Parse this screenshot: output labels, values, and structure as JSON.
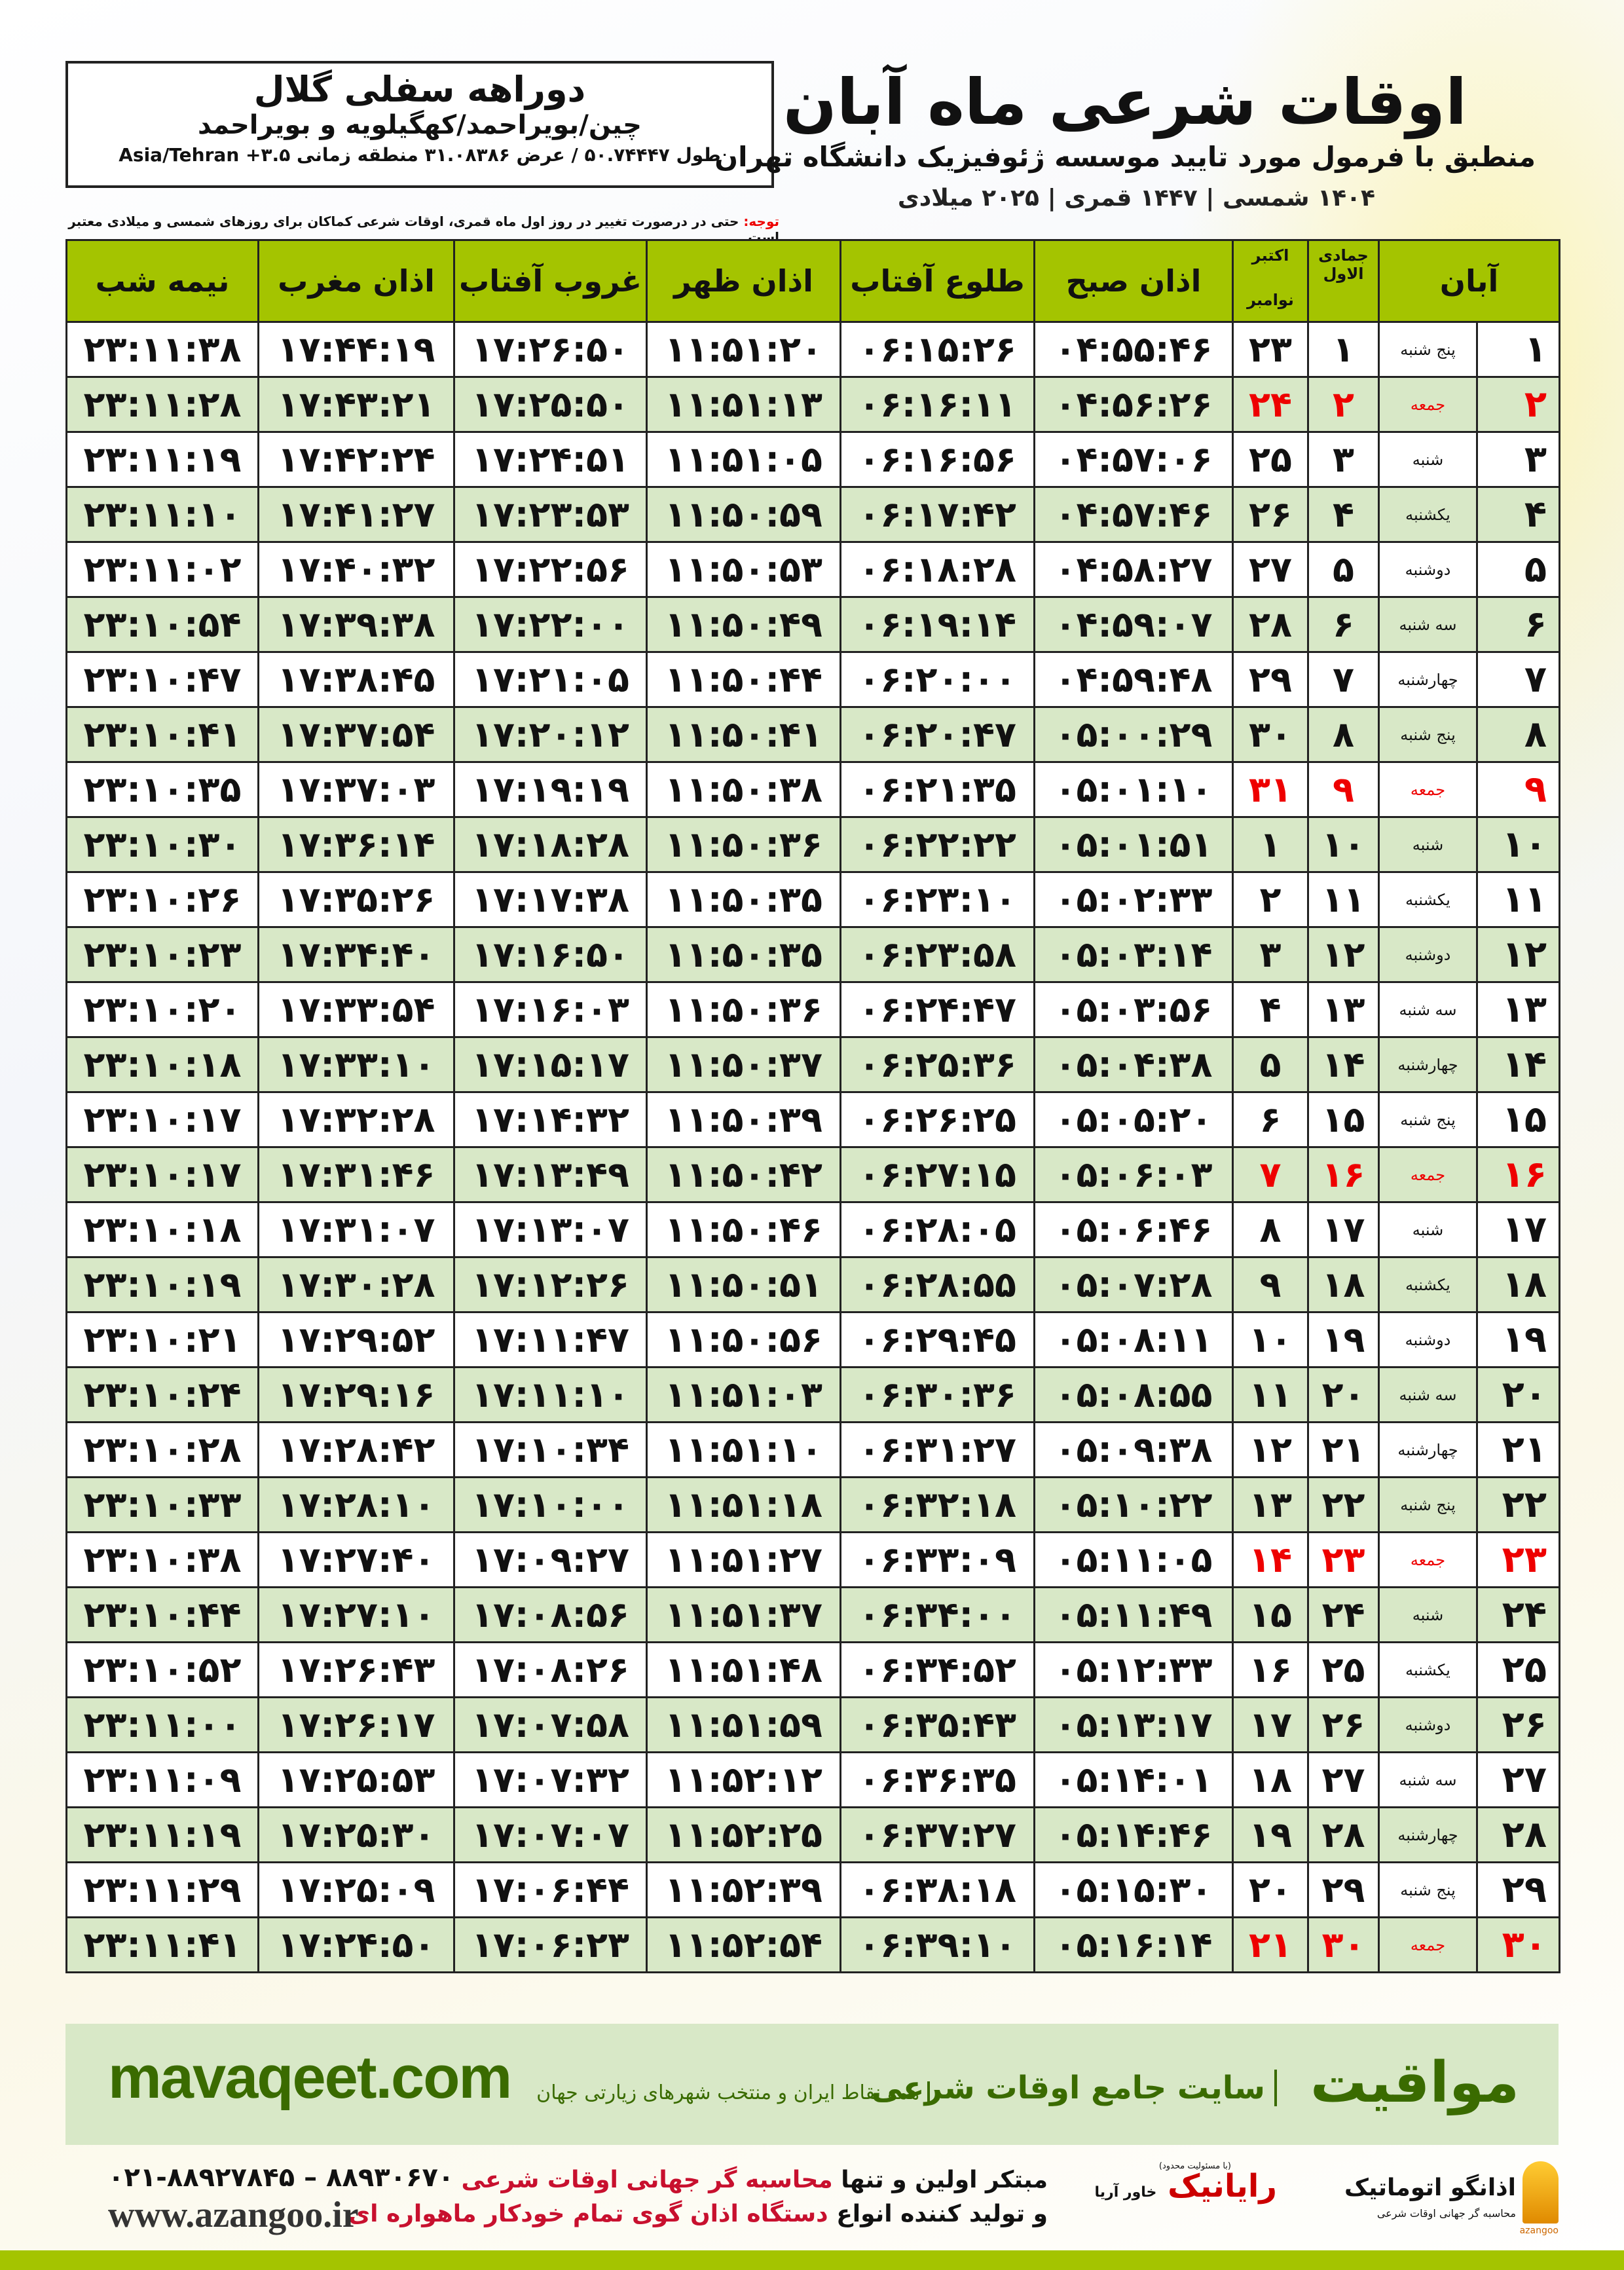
{
  "header": {
    "title": "اوقات شرعی ماه آبان",
    "subtitle": "منطبق با فرمول مورد تایید موسسه ژئوفیزیک دانشگاه تهران",
    "dates": "۱۴۰۴ شمسی | ۱۴۴۷ قمری | ۲۰۲۵ میلادی"
  },
  "location": {
    "name": "دوراهه سفلی گلال",
    "region": "چین/بویراحمد/کهگیلویه و بویراحمد",
    "coords": "طول ۵۰.۷۴۴۴۷ / عرض ۳۱.۰۸۳۸۶ منطقه زمانی ۳.۵+ Asia/Tehran"
  },
  "note": {
    "label": "توجه:",
    "text": " حتی در درصورت تغییر در روز اول ماه قمری، اوقات شرعی کماکان برای روزهای شمسی و میلادی معتبر است."
  },
  "table": {
    "headers": {
      "day": "آبان",
      "qamari": "جمادی الاول",
      "miladi_top": "اکتبر",
      "miladi_bottom": "نوامبر",
      "fajr": "اذان صبح",
      "sunrise": "طلوع آفتاب",
      "dhuhr": "اذان ظهر",
      "sunset": "غروب آفتاب",
      "maghrib": "اذان مغرب",
      "midnight": "نیمه شب"
    },
    "holiday_color": "#ee0000",
    "rows": [
      [
        "۱",
        "پنج شنبه",
        "۱",
        "۲۳",
        "۰۴:۵۵:۴۶",
        "۰۶:۱۵:۲۶",
        "۱۱:۵۱:۲۰",
        "۱۷:۲۶:۵۰",
        "۱۷:۴۴:۱۹",
        "۲۳:۱۱:۳۸"
      ],
      [
        "۲",
        "جمعه",
        "۲",
        "۲۴",
        "۰۴:۵۶:۲۶",
        "۰۶:۱۶:۱۱",
        "۱۱:۵۱:۱۳",
        "۱۷:۲۵:۵۰",
        "۱۷:۴۳:۲۱",
        "۲۳:۱۱:۲۸"
      ],
      [
        "۳",
        "شنبه",
        "۳",
        "۲۵",
        "۰۴:۵۷:۰۶",
        "۰۶:۱۶:۵۶",
        "۱۱:۵۱:۰۵",
        "۱۷:۲۴:۵۱",
        "۱۷:۴۲:۲۴",
        "۲۳:۱۱:۱۹"
      ],
      [
        "۴",
        "یکشنبه",
        "۴",
        "۲۶",
        "۰۴:۵۷:۴۶",
        "۰۶:۱۷:۴۲",
        "۱۱:۵۰:۵۹",
        "۱۷:۲۳:۵۳",
        "۱۷:۴۱:۲۷",
        "۲۳:۱۱:۱۰"
      ],
      [
        "۵",
        "دوشنبه",
        "۵",
        "۲۷",
        "۰۴:۵۸:۲۷",
        "۰۶:۱۸:۲۸",
        "۱۱:۵۰:۵۳",
        "۱۷:۲۲:۵۶",
        "۱۷:۴۰:۳۲",
        "۲۳:۱۱:۰۲"
      ],
      [
        "۶",
        "سه شنبه",
        "۶",
        "۲۸",
        "۰۴:۵۹:۰۷",
        "۰۶:۱۹:۱۴",
        "۱۱:۵۰:۴۹",
        "۱۷:۲۲:۰۰",
        "۱۷:۳۹:۳۸",
        "۲۳:۱۰:۵۴"
      ],
      [
        "۷",
        "چهارشنبه",
        "۷",
        "۲۹",
        "۰۴:۵۹:۴۸",
        "۰۶:۲۰:۰۰",
        "۱۱:۵۰:۴۴",
        "۱۷:۲۱:۰۵",
        "۱۷:۳۸:۴۵",
        "۲۳:۱۰:۴۷"
      ],
      [
        "۸",
        "پنج شنبه",
        "۸",
        "۳۰",
        "۰۵:۰۰:۲۹",
        "۰۶:۲۰:۴۷",
        "۱۱:۵۰:۴۱",
        "۱۷:۲۰:۱۲",
        "۱۷:۳۷:۵۴",
        "۲۳:۱۰:۴۱"
      ],
      [
        "۹",
        "جمعه",
        "۹",
        "۳۱",
        "۰۵:۰۱:۱۰",
        "۰۶:۲۱:۳۵",
        "۱۱:۵۰:۳۸",
        "۱۷:۱۹:۱۹",
        "۱۷:۳۷:۰۳",
        "۲۳:۱۰:۳۵"
      ],
      [
        "۱۰",
        "شنبه",
        "۱۰",
        "۱",
        "۰۵:۰۱:۵۱",
        "۰۶:۲۲:۲۲",
        "۱۱:۵۰:۳۶",
        "۱۷:۱۸:۲۸",
        "۱۷:۳۶:۱۴",
        "۲۳:۱۰:۳۰"
      ],
      [
        "۱۱",
        "یکشنبه",
        "۱۱",
        "۲",
        "۰۵:۰۲:۳۳",
        "۰۶:۲۳:۱۰",
        "۱۱:۵۰:۳۵",
        "۱۷:۱۷:۳۸",
        "۱۷:۳۵:۲۶",
        "۲۳:۱۰:۲۶"
      ],
      [
        "۱۲",
        "دوشنبه",
        "۱۲",
        "۳",
        "۰۵:۰۳:۱۴",
        "۰۶:۲۳:۵۸",
        "۱۱:۵۰:۳۵",
        "۱۷:۱۶:۵۰",
        "۱۷:۳۴:۴۰",
        "۲۳:۱۰:۲۳"
      ],
      [
        "۱۳",
        "سه شنبه",
        "۱۳",
        "۴",
        "۰۵:۰۳:۵۶",
        "۰۶:۲۴:۴۷",
        "۱۱:۵۰:۳۶",
        "۱۷:۱۶:۰۳",
        "۱۷:۳۳:۵۴",
        "۲۳:۱۰:۲۰"
      ],
      [
        "۱۴",
        "چهارشنبه",
        "۱۴",
        "۵",
        "۰۵:۰۴:۳۸",
        "۰۶:۲۵:۳۶",
        "۱۱:۵۰:۳۷",
        "۱۷:۱۵:۱۷",
        "۱۷:۳۳:۱۰",
        "۲۳:۱۰:۱۸"
      ],
      [
        "۱۵",
        "پنج شنبه",
        "۱۵",
        "۶",
        "۰۵:۰۵:۲۰",
        "۰۶:۲۶:۲۵",
        "۱۱:۵۰:۳۹",
        "۱۷:۱۴:۳۲",
        "۱۷:۳۲:۲۸",
        "۲۳:۱۰:۱۷"
      ],
      [
        "۱۶",
        "جمعه",
        "۱۶",
        "۷",
        "۰۵:۰۶:۰۳",
        "۰۶:۲۷:۱۵",
        "۱۱:۵۰:۴۲",
        "۱۷:۱۳:۴۹",
        "۱۷:۳۱:۴۶",
        "۲۳:۱۰:۱۷"
      ],
      [
        "۱۷",
        "شنبه",
        "۱۷",
        "۸",
        "۰۵:۰۶:۴۶",
        "۰۶:۲۸:۰۵",
        "۱۱:۵۰:۴۶",
        "۱۷:۱۳:۰۷",
        "۱۷:۳۱:۰۷",
        "۲۳:۱۰:۱۸"
      ],
      [
        "۱۸",
        "یکشنبه",
        "۱۸",
        "۹",
        "۰۵:۰۷:۲۸",
        "۰۶:۲۸:۵۵",
        "۱۱:۵۰:۵۱",
        "۱۷:۱۲:۲۶",
        "۱۷:۳۰:۲۸",
        "۲۳:۱۰:۱۹"
      ],
      [
        "۱۹",
        "دوشنبه",
        "۱۹",
        "۱۰",
        "۰۵:۰۸:۱۱",
        "۰۶:۲۹:۴۵",
        "۱۱:۵۰:۵۶",
        "۱۷:۱۱:۴۷",
        "۱۷:۲۹:۵۲",
        "۲۳:۱۰:۲۱"
      ],
      [
        "۲۰",
        "سه شنبه",
        "۲۰",
        "۱۱",
        "۰۵:۰۸:۵۵",
        "۰۶:۳۰:۳۶",
        "۱۱:۵۱:۰۳",
        "۱۷:۱۱:۱۰",
        "۱۷:۲۹:۱۶",
        "۲۳:۱۰:۲۴"
      ],
      [
        "۲۱",
        "چهارشنبه",
        "۲۱",
        "۱۲",
        "۰۵:۰۹:۳۸",
        "۰۶:۳۱:۲۷",
        "۱۱:۵۱:۱۰",
        "۱۷:۱۰:۳۴",
        "۱۷:۲۸:۴۲",
        "۲۳:۱۰:۲۸"
      ],
      [
        "۲۲",
        "پنج شنبه",
        "۲۲",
        "۱۳",
        "۰۵:۱۰:۲۲",
        "۰۶:۳۲:۱۸",
        "۱۱:۵۱:۱۸",
        "۱۷:۱۰:۰۰",
        "۱۷:۲۸:۱۰",
        "۲۳:۱۰:۳۳"
      ],
      [
        "۲۳",
        "جمعه",
        "۲۳",
        "۱۴",
        "۰۵:۱۱:۰۵",
        "۰۶:۳۳:۰۹",
        "۱۱:۵۱:۲۷",
        "۱۷:۰۹:۲۷",
        "۱۷:۲۷:۴۰",
        "۲۳:۱۰:۳۸"
      ],
      [
        "۲۴",
        "شنبه",
        "۲۴",
        "۱۵",
        "۰۵:۱۱:۴۹",
        "۰۶:۳۴:۰۰",
        "۱۱:۵۱:۳۷",
        "۱۷:۰۸:۵۶",
        "۱۷:۲۷:۱۰",
        "۲۳:۱۰:۴۴"
      ],
      [
        "۲۵",
        "یکشنبه",
        "۲۵",
        "۱۶",
        "۰۵:۱۲:۳۳",
        "۰۶:۳۴:۵۲",
        "۱۱:۵۱:۴۸",
        "۱۷:۰۸:۲۶",
        "۱۷:۲۶:۴۳",
        "۲۳:۱۰:۵۲"
      ],
      [
        "۲۶",
        "دوشنبه",
        "۲۶",
        "۱۷",
        "۰۵:۱۳:۱۷",
        "۰۶:۳۵:۴۳",
        "۱۱:۵۱:۵۹",
        "۱۷:۰۷:۵۸",
        "۱۷:۲۶:۱۷",
        "۲۳:۱۱:۰۰"
      ],
      [
        "۲۷",
        "سه شنبه",
        "۲۷",
        "۱۸",
        "۰۵:۱۴:۰۱",
        "۰۶:۳۶:۳۵",
        "۱۱:۵۲:۱۲",
        "۱۷:۰۷:۳۲",
        "۱۷:۲۵:۵۳",
        "۲۳:۱۱:۰۹"
      ],
      [
        "۲۸",
        "چهارشنبه",
        "۲۸",
        "۱۹",
        "۰۵:۱۴:۴۶",
        "۰۶:۳۷:۲۷",
        "۱۱:۵۲:۲۵",
        "۱۷:۰۷:۰۷",
        "۱۷:۲۵:۳۰",
        "۲۳:۱۱:۱۹"
      ],
      [
        "۲۹",
        "پنج شنبه",
        "۲۹",
        "۲۰",
        "۰۵:۱۵:۳۰",
        "۰۶:۳۸:۱۸",
        "۱۱:۵۲:۳۹",
        "۱۷:۰۶:۴۴",
        "۱۷:۲۵:۰۹",
        "۲۳:۱۱:۲۹"
      ],
      [
        "۳۰",
        "جمعه",
        "۳۰",
        "۲۱",
        "۰۵:۱۶:۱۴",
        "۰۶:۳۹:۱۰",
        "۱۱:۵۲:۵۴",
        "۱۷:۰۶:۲۳",
        "۱۷:۲۴:۵۰",
        "۲۳:۱۱:۴۱"
      ]
    ]
  },
  "footer": {
    "brand": "مواقیت",
    "brand_tag": "سایت جامع اوقات شرعی",
    "brand_sub": "همه نقاط ایران و منتخب شهرهای زیارتی جهان",
    "site": "mavaqeet.com",
    "azangoo_name": "اذانگو اتوماتیک",
    "azangoo_sub": "محاسبه گر جهانی اوقات شرعی",
    "azangoo_latin": "azangoo",
    "raya_small": "(با مسئولیت محدود)",
    "raya_name": "رایانیک",
    "raya_extra": "خاور آریا",
    "promo_1a": "مبتکر اولین و تنها ",
    "promo_1b": "محاسبه گر جهانی اوقات شرعی",
    "promo_2a": "و تولید کننده انواع ",
    "promo_2b": "دستگاه اذان گوی تمام خودکار ماهواره ای",
    "phones": "۰۲۱-۸۸۹۲۷۸۴۵ – ۸۸۹۳۰۶۷۰",
    "web": "www.azangoo.ir"
  },
  "colors": {
    "header_green": "#a4c400",
    "row_green": "#d8e8c7",
    "brand_green": "#3a6b00"
  }
}
